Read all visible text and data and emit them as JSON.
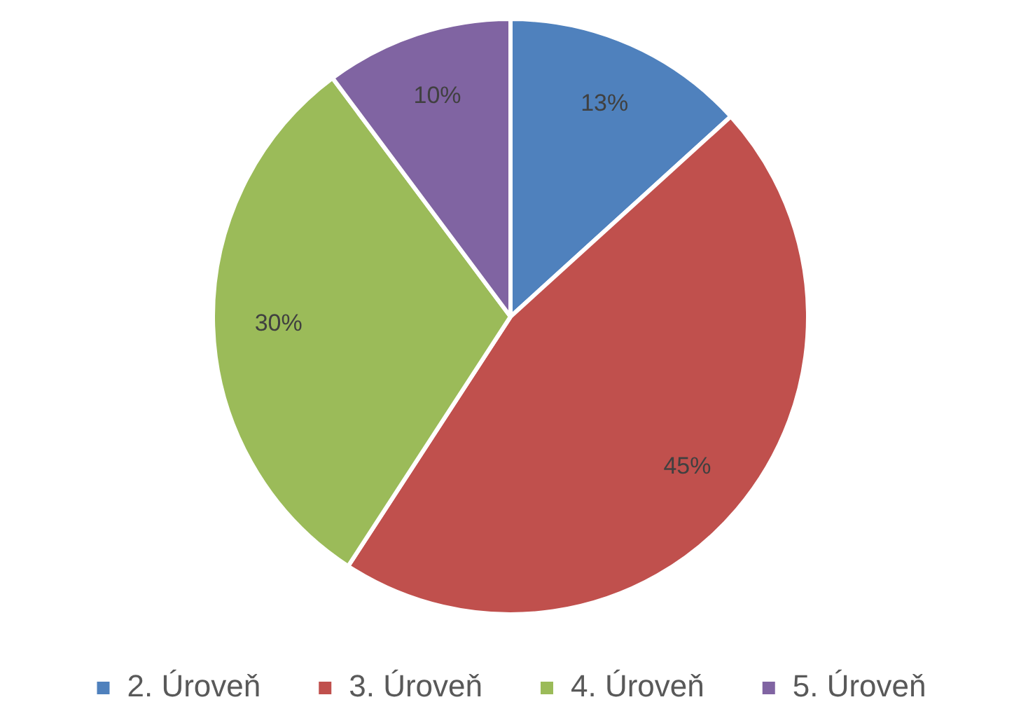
{
  "chart_data": {
    "type": "pie",
    "categories": [
      "2. Úroveň",
      "3. Úroveň",
      "4. Úroveň",
      "5. Úroveň"
    ],
    "values": [
      13,
      45,
      30,
      10
    ],
    "colors": [
      "#4f81bd",
      "#c0504d",
      "#9bbb59",
      "#8064a2"
    ],
    "value_labels": [
      "13%",
      "45%",
      "30%",
      "10%"
    ],
    "legend": "bottom"
  }
}
